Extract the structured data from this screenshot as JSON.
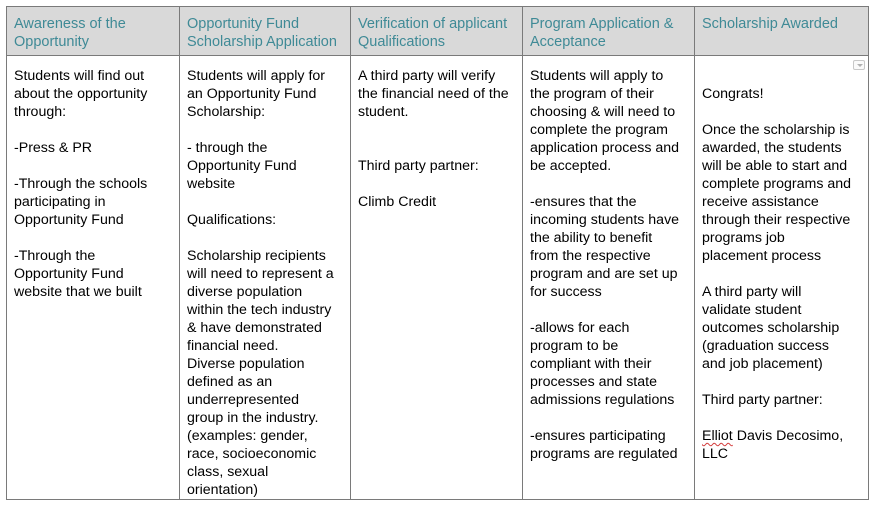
{
  "headers": [
    [
      "Awareness of the",
      "Opportunity"
    ],
    [
      "Opportunity Fund",
      "Scholarship Application"
    ],
    [
      "Verification of applicant",
      "Qualifications"
    ],
    [
      "Program Application &",
      "Acceptance"
    ],
    [
      "Scholarship Awarded"
    ]
  ],
  "columns": [
    [
      "Students will find out",
      "about the opportunity",
      "through:",
      "",
      "-Press & PR",
      "",
      "-Through the schools",
      "participating in",
      "Opportunity Fund",
      "",
      "-Through the",
      "Opportunity Fund",
      "website that we built"
    ],
    [
      "Students will apply for",
      "an Opportunity Fund",
      "Scholarship:",
      "",
      "- through the",
      "Opportunity Fund",
      "website",
      "",
      "Qualifications:",
      "",
      "Scholarship recipients",
      "will need to represent a",
      "diverse population",
      "within the tech industry",
      "& have demonstrated",
      "financial need.",
      "Diverse population",
      "defined as an",
      "underrepresented",
      "group in the industry.",
      "(examples: gender,",
      "race, socioeconomic",
      "class, sexual",
      "orientation)"
    ],
    [
      "A third party will verify",
      "the financial need of the",
      "student.",
      "",
      "",
      "Third party partner:",
      "",
      "Climb Credit"
    ],
    [
      "Students will apply to",
      "the program of their",
      "choosing & will need to",
      "complete the program",
      "application process and",
      "be accepted.",
      "",
      "-ensures that the",
      "incoming students have",
      "the ability to benefit",
      "from the respective",
      "program and are set up",
      "for success",
      "",
      "-allows for each",
      "program to be",
      "compliant with their",
      "processes and state",
      "admissions regulations",
      "",
      "-ensures participating",
      "programs are regulated"
    ],
    [
      "",
      "Congrats!",
      "",
      "Once the scholarship is",
      "awarded, the students",
      "will be able to start and",
      "complete programs and",
      "receive assistance",
      "through their respective",
      "programs job",
      "placement process",
      "",
      "A third party will",
      "validate student",
      "outcomes scholarship",
      "(graduation success",
      "and job placement)",
      "",
      "Third party partner:",
      "",
      "Elliot Davis Decosimo,",
      "LLC"
    ]
  ],
  "icons": {
    "cell_dropdown": "dropdown-arrow-icon"
  },
  "colors": {
    "header_bg": "#d9d9d9",
    "header_text": "#3f8a96",
    "border": "#7a7a7a"
  }
}
